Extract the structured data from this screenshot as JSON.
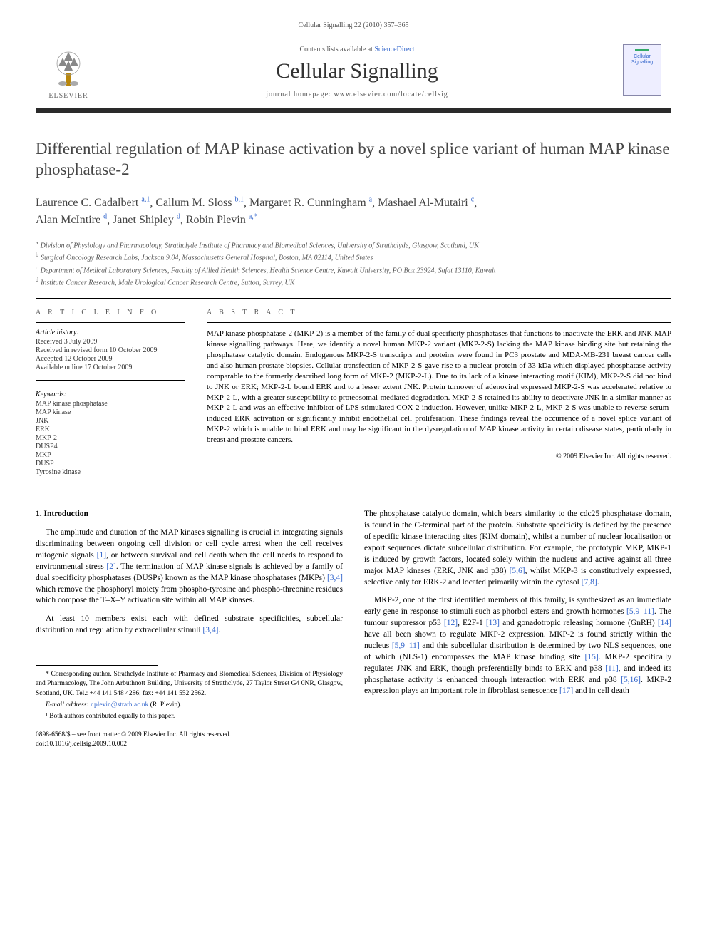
{
  "page_header": "Cellular Signalling 22 (2010) 357–365",
  "masthead": {
    "contents_prefix": "Contents lists available at ",
    "sciencedirect": "ScienceDirect",
    "journal_name": "Cellular Signalling",
    "homepage_label": "journal homepage: www.elsevier.com/locate/cellsig",
    "elsevier_label": "ELSEVIER",
    "cover_text": "Cellular\nSignalling"
  },
  "title": "Differential regulation of MAP kinase activation by a novel splice variant of human MAP kinase phosphatase-2",
  "authors": [
    {
      "name": "Laurence C. Cadalbert",
      "marks": "a,1"
    },
    {
      "name": "Callum M. Sloss",
      "marks": "b,1"
    },
    {
      "name": "Margaret R. Cunningham",
      "marks": "a"
    },
    {
      "name": "Mashael Al-Mutairi",
      "marks": "c"
    },
    {
      "name": "Alan McIntire",
      "marks": "d"
    },
    {
      "name": "Janet Shipley",
      "marks": "d"
    },
    {
      "name": "Robin Plevin",
      "marks": "a,*"
    }
  ],
  "affiliations": [
    {
      "key": "a",
      "text": "Division of Physiology and Pharmacology, Strathclyde Institute of Pharmacy and Biomedical Sciences, University of Strathclyde, Glasgow, Scotland, UK"
    },
    {
      "key": "b",
      "text": "Surgical Oncology Research Labs, Jackson 9.04, Massachusetts General Hospital, Boston, MA 02114, United States"
    },
    {
      "key": "c",
      "text": "Department of Medical Laboratory Sciences, Faculty of Allied Health Sciences, Health Science Centre, Kuwait University, PO Box 23924, Safat 13110, Kuwait"
    },
    {
      "key": "d",
      "text": "Institute Cancer Research, Male Urological Cancer Research Centre, Sutton, Surrey, UK"
    }
  ],
  "article_info": {
    "heading": "A R T I C L E   I N F O",
    "history_label": "Article history:",
    "history": [
      "Received 3 July 2009",
      "Received in revised form 10 October 2009",
      "Accepted 12 October 2009",
      "Available online 17 October 2009"
    ],
    "keywords_label": "Keywords:",
    "keywords": [
      "MAP kinase phosphatase",
      "MAP kinase",
      "JNK",
      "ERK",
      "MKP-2",
      "DUSP4",
      "MKP",
      "DUSP",
      "Tyrosine kinase"
    ]
  },
  "abstract": {
    "heading": "A B S T R A C T",
    "text": "MAP kinase phosphatase-2 (MKP-2) is a member of the family of dual specificity phosphatases that functions to inactivate the ERK and JNK MAP kinase signalling pathways. Here, we identify a novel human MKP-2 variant (MKP-2-S) lacking the MAP kinase binding site but retaining the phosphatase catalytic domain. Endogenous MKP-2-S transcripts and proteins were found in PC3 prostate and MDA-MB-231 breast cancer cells and also human prostate biopsies. Cellular transfection of MKP-2-S gave rise to a nuclear protein of 33 kDa which displayed phosphatase activity comparable to the formerly described long form of MKP-2 (MKP-2-L). Due to its lack of a kinase interacting motif (KIM), MKP-2-S did not bind to JNK or ERK; MKP-2-L bound ERK and to a lesser extent JNK. Protein turnover of adenoviral expressed MKP-2-S was accelerated relative to MKP-2-L, with a greater susceptibility to proteosomal-mediated degradation. MKP-2-S retained its ability to deactivate JNK in a similar manner as MKP-2-L and was an effective inhibitor of LPS-stimulated COX-2 induction. However, unlike MKP-2-L, MKP-2-S was unable to reverse serum-induced ERK activation or significantly inhibit endothelial cell proliferation. These findings reveal the occurrence of a novel splice variant of MKP-2 which is unable to bind ERK and may be significant in the dysregulation of MAP kinase activity in certain disease states, particularly in breast and prostate cancers.",
    "copyright": "© 2009 Elsevier Inc. All rights reserved."
  },
  "section1": {
    "heading": "1. Introduction",
    "p1": "The amplitude and duration of the MAP kinases signalling is crucial in integrating signals discriminating between ongoing cell division or cell cycle arrest when the cell receives mitogenic signals [1], or between survival and cell death when the cell needs to respond to environmental stress [2]. The termination of MAP kinase signals is achieved by a family of dual specificity phosphatases (DUSPs) known as the MAP kinase phosphatases (MKPs) [3,4] which remove the phosphoryl moiety from phospho-tyrosine and phospho-threonine residues which compose the T–X–Y activation site within all MAP kinases.",
    "p2": "At least 10 members exist each with defined substrate specificities, subcellular distribution and regulation by extracellular stimuli [3,4].",
    "p3": "The phosphatase catalytic domain, which bears similarity to the cdc25 phosphatase domain, is found in the C-terminal part of the protein. Substrate specificity is defined by the presence of specific kinase interacting sites (KIM domain), whilst a number of nuclear localisation or export sequences dictate subcellular distribution. For example, the prototypic MKP, MKP-1 is induced by growth factors, located solely within the nucleus and active against all three major MAP kinases (ERK, JNK and p38) [5,6], whilst MKP-3 is constitutively expressed, selective only for ERK-2 and located primarily within the cytosol [7,8].",
    "p4": "MKP-2, one of the first identified members of this family, is synthesized as an immediate early gene in response to stimuli such as phorbol esters and growth hormones [5,9–11]. The tumour suppressor p53 [12], E2F-1 [13] and gonadotropic releasing hormone (GnRH) [14] have all been shown to regulate MKP-2 expression. MKP-2 is found strictly within the nucleus [5,9–11] and this subcellular distribution is determined by two NLS sequences, one of which (NLS-1) encompasses the MAP kinase binding site [15]. MKP-2 specifically regulates JNK and ERK, though preferentially binds to ERK and p38 [11], and indeed its phosphatase activity is enhanced through interaction with ERK and p38 [5,16]. MKP-2 expression plays an important role in fibroblast senescence [17] and in cell death"
  },
  "footnotes": {
    "corresponding": "* Corresponding author. Strathclyde Institute of Pharmacy and Biomedical Sciences, Division of Physiology and Pharmacology, The John Arbuthnott Building, University of Strathclyde, 27 Taylor Street G4 0NR, Glasgow, Scotland, UK. Tel.: +44 141 548 4286; fax: +44 141 552 2562.",
    "email_label": "E-mail address: ",
    "email": "r.plevin@strath.ac.uk",
    "email_person": " (R. Plevin).",
    "equal": "¹ Both authors contributed equally to this paper."
  },
  "footer": {
    "left1": "0898-6568/$ – see front matter © 2009 Elsevier Inc. All rights reserved.",
    "left2": "doi:10.1016/j.cellsig.2009.10.002"
  },
  "colors": {
    "link": "#3366cc",
    "text": "#000000",
    "heading": "#464646",
    "muted": "#555555"
  }
}
